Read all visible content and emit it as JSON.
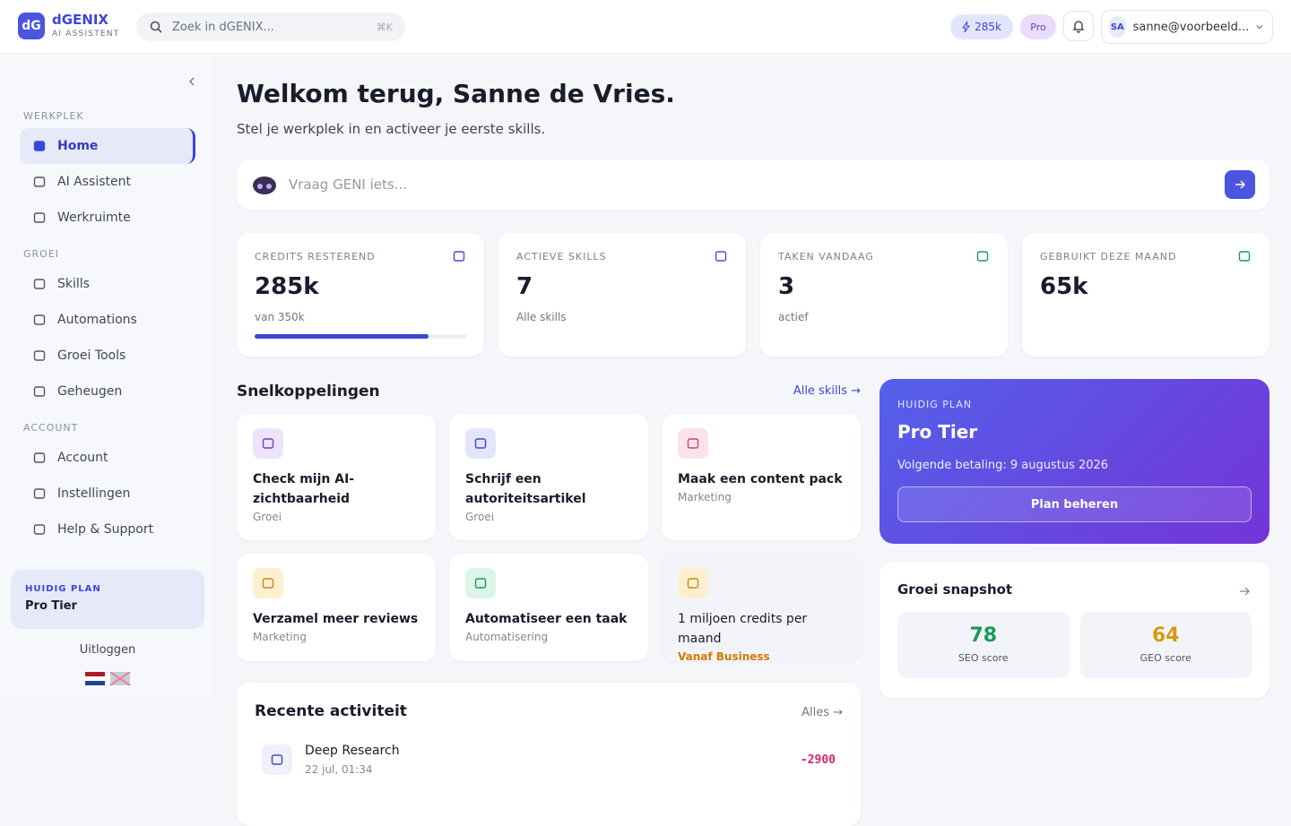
{
  "header": {
    "logo_mark": "dG",
    "brand": "dGENIX",
    "brand_sub": "AI ASSISTENT",
    "search_placeholder": "Zoek in dGENIX...",
    "search_shortcut": "⌘K",
    "credits_badge": "285k",
    "plan_badge": "Pro",
    "avatar": "SA",
    "email": "sanne@voorbeeld..."
  },
  "sidebar": {
    "sections": [
      {
        "title": "WERKPLEK",
        "items": [
          "Home",
          "AI Assistent",
          "Werkruimte"
        ]
      },
      {
        "title": "GROEI",
        "items": [
          "Skills",
          "Automations",
          "Groei Tools",
          "Geheugen"
        ]
      },
      {
        "title": "ACCOUNT",
        "items": [
          "Account",
          "Instellingen",
          "Help & Support"
        ]
      }
    ],
    "plan_label": "HUIDIG PLAN",
    "plan_name": "Pro Tier",
    "logout": "Uitloggen"
  },
  "main": {
    "title": "Welkom terug, Sanne de Vries.",
    "subtitle": "Stel je werkplek in en activeer je eerste skills.",
    "prompt_placeholder": "Vraag GENI iets...",
    "stats": [
      {
        "label": "CREDITS RESTEREND",
        "value": "285k",
        "sub": "van 350k",
        "progress": 82
      },
      {
        "label": "ACTIEVE SKILLS",
        "value": 7,
        "sub": "Alle skills"
      },
      {
        "label": "TAKEN VANDAAG",
        "value": 3,
        "sub": "actief"
      },
      {
        "label": "GEBRUIKT DEZE MAAND",
        "value": "65k"
      }
    ],
    "shortcuts": {
      "title": "Snelkoppelingen",
      "link": "Alle skills →",
      "cards": [
        {
          "title": "Check mijn AI-zichtbaarheid",
          "tag": "Groei"
        },
        {
          "title": "Schrijf een autoriteitsartikel",
          "tag": "Groei"
        },
        {
          "title": "Maak een content pack",
          "tag": "Marketing"
        },
        {
          "title": "Verzamel meer reviews",
          "tag": "Marketing"
        },
        {
          "title": "Automatiseer een taak",
          "tag": "Automatisering"
        },
        {
          "title": "1 miljoen credits per maand",
          "tag": "Vanaf Business"
        }
      ]
    },
    "plan_card": {
      "label": "HUIDIG PLAN",
      "name": "Pro Tier",
      "next_payment": "Volgende betaling: 9 augustus 2026",
      "button": "Plan beheren"
    },
    "snapshot": {
      "title": "Groei snapshot",
      "scores": [
        {
          "value": 78,
          "label": "SEO score"
        },
        {
          "value": 64,
          "label": "GEO score"
        }
      ]
    },
    "activity": {
      "title": "Recente activiteit",
      "link": "Alles →",
      "items": [
        {
          "name": "Deep Research",
          "time": "22 jul, 01:34",
          "amount": -2900
        }
      ]
    }
  }
}
